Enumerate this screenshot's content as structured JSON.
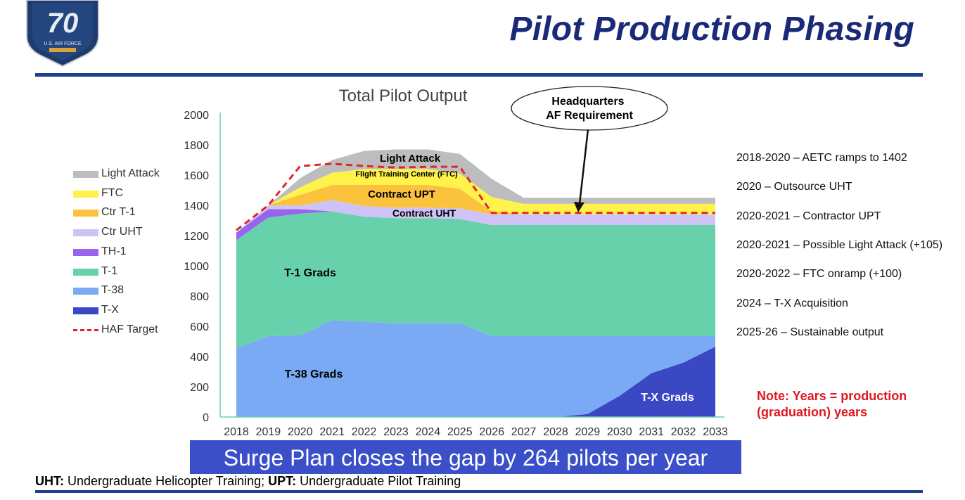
{
  "header": {
    "title": "Pilot Production Phasing",
    "logo": {
      "number": "70",
      "caption": "U.S. AIR FORCE",
      "icon": "usaf-70th-anniversary-shield"
    }
  },
  "chart_data": {
    "type": "area",
    "title": "Total Pilot Output",
    "xlabel": "",
    "ylabel": "",
    "ylim": [
      0,
      2000
    ],
    "yticks": [
      0,
      200,
      400,
      600,
      800,
      1000,
      1200,
      1400,
      1600,
      1800,
      2000
    ],
    "x": [
      2018,
      2019,
      2020,
      2021,
      2022,
      2023,
      2024,
      2025,
      2026,
      2027,
      2028,
      2029,
      2030,
      2031,
      2032,
      2033
    ],
    "stacked": true,
    "grid": false,
    "legend_position": "left",
    "series": [
      {
        "name": "T-X",
        "color": "#3b48c4",
        "values": [
          0,
          0,
          0,
          0,
          0,
          0,
          0,
          0,
          0,
          0,
          0,
          20,
          140,
          290,
          360,
          465
        ]
      },
      {
        "name": "T-38",
        "color": "#7aaaf4",
        "values": [
          455,
          535,
          540,
          640,
          630,
          620,
          620,
          620,
          535,
          535,
          535,
          515,
          395,
          245,
          175,
          70
        ]
      },
      {
        "name": "T-1",
        "color": "#67d1ac",
        "values": [
          715,
          785,
          805,
          720,
          695,
          695,
          695,
          690,
          735,
          735,
          735,
          735,
          735,
          735,
          735,
          735
        ]
      },
      {
        "name": "TH-1",
        "color": "#9a63ee",
        "values": [
          50,
          55,
          30,
          0,
          0,
          0,
          0,
          0,
          0,
          0,
          0,
          0,
          0,
          0,
          0,
          0
        ]
      },
      {
        "name": "Ctr UHT",
        "color": "#cfc2f6",
        "values": [
          0,
          25,
          25,
          75,
          70,
          70,
          70,
          70,
          70,
          70,
          70,
          70,
          70,
          70,
          70,
          70
        ]
      },
      {
        "name": "Ctr T-1",
        "color": "#fbc23e",
        "values": [
          0,
          0,
          70,
          100,
          140,
          150,
          150,
          130,
          20,
          0,
          0,
          0,
          0,
          0,
          0,
          0
        ]
      },
      {
        "name": "FTC",
        "color": "#fff24a",
        "values": [
          0,
          0,
          50,
          80,
          105,
          105,
          105,
          100,
          95,
          70,
          70,
          70,
          70,
          70,
          70,
          70
        ]
      },
      {
        "name": "Light Attack",
        "color": "#bdbdbd",
        "values": [
          0,
          0,
          60,
          85,
          120,
          130,
          130,
          130,
          120,
          40,
          40,
          40,
          40,
          40,
          40,
          40
        ]
      }
    ],
    "target_line": {
      "name": "HAF Target",
      "color": "#e0262b",
      "values": [
        1235,
        1400,
        1660,
        1675,
        1660,
        1650,
        1655,
        1655,
        1350,
        1350,
        1350,
        1350,
        1350,
        1350,
        1350,
        1350
      ]
    },
    "annotations": {
      "light_attack": "Light Attack",
      "ftc": "Flight Training Center (FTC)",
      "contract_upt": "Contract UPT",
      "contract_uht": "Contract UHT",
      "t1_grads": "T-1 Grads",
      "t38_grads": "T-38 Grads",
      "tx_grads": "T-X Grads",
      "callout_line1": "Headquarters",
      "callout_line2": "AF Requirement"
    }
  },
  "timeline": [
    "2018-2020 – AETC ramps to 1402",
    "2020 – Outsource UHT",
    "2020-2021 – Contractor UPT",
    "2020-2021 – Possible Light Attack (+105)",
    "2020-2022 – FTC onramp (+100)",
    "2024 – T-X Acquisition",
    "2025-26 – Sustainable output"
  ],
  "note": {
    "line1": "Note: Years = production",
    "line2": "(graduation) years"
  },
  "banner": "Surge Plan closes the gap by 264 pilots per year",
  "footnote": {
    "uht_abbr": "UHT:",
    "uht_text": " Undergraduate Helicopter Training; ",
    "upt_abbr": "UPT:",
    "upt_text": " Undergraduate Pilot Training"
  }
}
